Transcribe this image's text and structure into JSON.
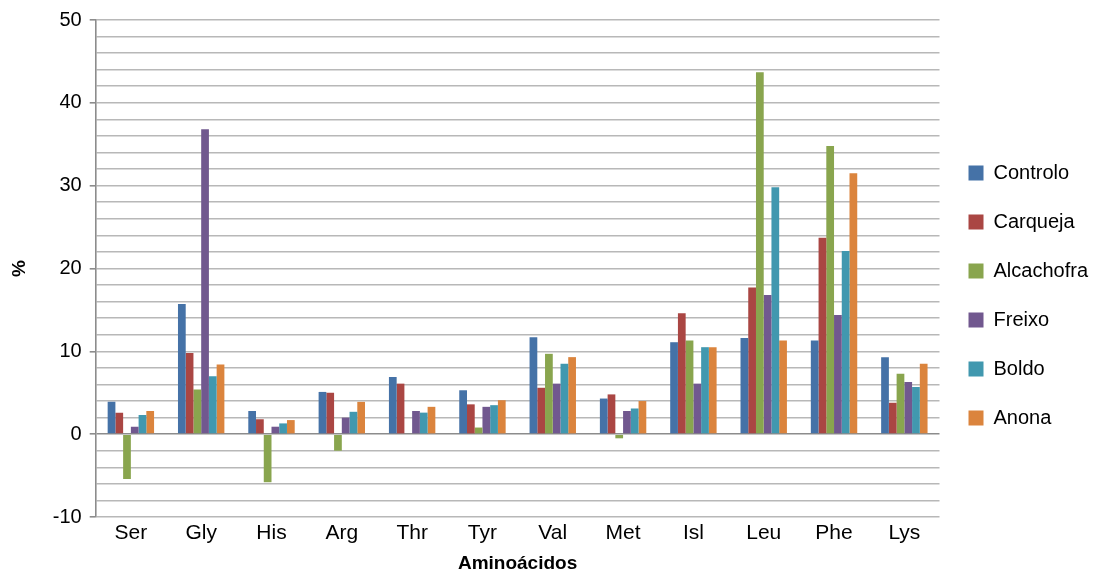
{
  "chart_data": {
    "type": "bar",
    "xlabel": "Aminoácidos",
    "ylabel": "%",
    "categories": [
      "Ser",
      "Gly",
      "His",
      "Arg",
      "Thr",
      "Tyr",
      "Val",
      "Met",
      "Isl",
      "Leu",
      "Phe",
      "Lys"
    ],
    "series": [
      {
        "name": "Controlo",
        "color": "#4572a7",
        "values": [
          3.9,
          15.7,
          2.8,
          5.1,
          6.9,
          5.3,
          11.7,
          4.3,
          11.1,
          11.6,
          11.3,
          9.3
        ]
      },
      {
        "name": "Carqueja",
        "color": "#aa4643",
        "values": [
          2.6,
          9.8,
          1.8,
          5.0,
          6.1,
          3.6,
          5.6,
          4.8,
          14.6,
          17.7,
          23.7,
          3.8
        ]
      },
      {
        "name": "Alcachofra",
        "color": "#89a54e",
        "values": [
          -5.4,
          5.4,
          -5.8,
          -2.0,
          null,
          0.8,
          9.7,
          -0.5,
          11.3,
          43.7,
          34.8,
          7.3
        ]
      },
      {
        "name": "Freixo",
        "color": "#71588f",
        "values": [
          0.9,
          36.8,
          0.9,
          2.0,
          2.8,
          3.3,
          6.1,
          2.8,
          6.1,
          16.8,
          14.4,
          6.3
        ]
      },
      {
        "name": "Boldo",
        "color": "#4198af",
        "values": [
          2.3,
          7.0,
          1.3,
          2.7,
          2.6,
          3.5,
          8.5,
          3.1,
          10.5,
          29.8,
          22.1,
          5.7
        ]
      },
      {
        "name": "Anona",
        "color": "#db843d",
        "values": [
          2.8,
          8.4,
          1.7,
          3.9,
          3.3,
          4.1,
          9.3,
          4.0,
          10.5,
          11.3,
          31.5,
          8.5
        ]
      }
    ],
    "ylim": [
      -10,
      50
    ],
    "yticks": [
      -10,
      {
        "value": -8,
        "label": null
      },
      {
        "value": -6,
        "label": null
      },
      {
        "value": -4,
        "label": null
      },
      {
        "value": -2,
        "label": null
      },
      0,
      {
        "value": 2,
        "label": null
      },
      {
        "value": 4,
        "label": null
      },
      {
        "value": 6,
        "label": null
      },
      {
        "value": 8,
        "label": null
      },
      10,
      {
        "value": 12,
        "label": null
      },
      {
        "value": 14,
        "label": null
      },
      {
        "value": 16,
        "label": null
      },
      {
        "value": 18,
        "label": null
      },
      20,
      {
        "value": 22,
        "label": null
      },
      {
        "value": 24,
        "label": null
      },
      {
        "value": 26,
        "label": null
      },
      {
        "value": 28,
        "label": null
      },
      30,
      {
        "value": 32,
        "label": null
      },
      {
        "value": 34,
        "label": null
      },
      {
        "value": 36,
        "label": null
      },
      {
        "value": 38,
        "label": null
      },
      40,
      {
        "value": 42,
        "label": null
      },
      {
        "value": 44,
        "label": null
      },
      {
        "value": 46,
        "label": null
      },
      {
        "value": 48,
        "label": null
      },
      50
    ],
    "grid": "y",
    "legend": "right"
  }
}
